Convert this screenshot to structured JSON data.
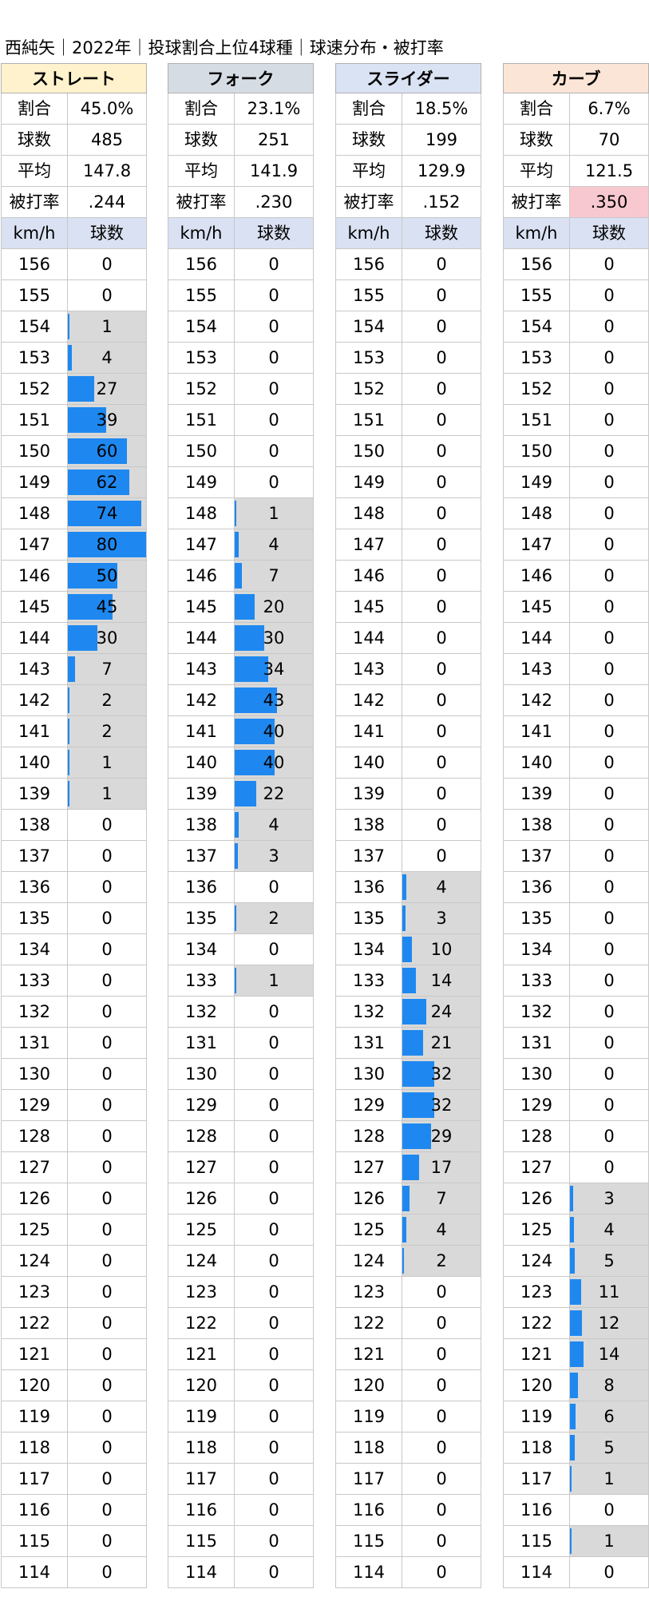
{
  "title": "西純矢｜2022年｜投球割合上位4球種｜球速分布・被打率",
  "colors": {
    "bar": "#1e88f0",
    "bar_bg": "#d9d9d9",
    "col_header_bg": "#d9e1f2",
    "highlight": "#f8c8d0"
  },
  "stat_labels": [
    "割合",
    "球数",
    "平均",
    "被打率"
  ],
  "col_headers": {
    "speed": "km/h",
    "count": "球数"
  },
  "speeds": [
    "156",
    "155",
    "154",
    "153",
    "152",
    "151",
    "150",
    "149",
    "148",
    "147",
    "146",
    "145",
    "144",
    "143",
    "142",
    "141",
    "140",
    "139",
    "138",
    "137",
    "136",
    "135",
    "134",
    "133",
    "132",
    "131",
    "130",
    "129",
    "128",
    "127",
    "126",
    "125",
    "124",
    "123",
    "122",
    "121",
    "120",
    "119",
    "118",
    "117",
    "116",
    "115",
    "114"
  ],
  "pitches": [
    {
      "name": "ストレート",
      "header_color": "#fff2cc",
      "stats": [
        "45.0%",
        "485",
        "147.8",
        ".244"
      ],
      "highlight_stat": -1,
      "counts": [
        "0",
        "0",
        "1",
        "4",
        "27",
        "39",
        "60",
        "62",
        "74",
        "80",
        "50",
        "45",
        "30",
        "7",
        "2",
        "2",
        "1",
        "1",
        "0",
        "0",
        "0",
        "0",
        "0",
        "0",
        "0",
        "0",
        "0",
        "0",
        "0",
        "0",
        "0",
        "0",
        "0",
        "0",
        "0",
        "0",
        "0",
        "0",
        "0",
        "0",
        "0",
        "0",
        "0"
      ]
    },
    {
      "name": "フォーク",
      "header_color": "#d6dce4",
      "stats": [
        "23.1%",
        "251",
        "141.9",
        ".230"
      ],
      "highlight_stat": -1,
      "counts": [
        "0",
        "0",
        "0",
        "0",
        "0",
        "0",
        "0",
        "0",
        "1",
        "4",
        "7",
        "20",
        "30",
        "34",
        "43",
        "40",
        "40",
        "22",
        "4",
        "3",
        "0",
        "2",
        "0",
        "1",
        "0",
        "0",
        "0",
        "0",
        "0",
        "0",
        "0",
        "0",
        "0",
        "0",
        "0",
        "0",
        "0",
        "0",
        "0",
        "0",
        "0",
        "0",
        "0"
      ]
    },
    {
      "name": "スライダー",
      "header_color": "#dae3f3",
      "stats": [
        "18.5%",
        "199",
        "129.9",
        ".152"
      ],
      "highlight_stat": -1,
      "counts": [
        "0",
        "0",
        "0",
        "0",
        "0",
        "0",
        "0",
        "0",
        "0",
        "0",
        "0",
        "0",
        "0",
        "0",
        "0",
        "0",
        "0",
        "0",
        "0",
        "0",
        "4",
        "3",
        "10",
        "14",
        "24",
        "21",
        "32",
        "32",
        "29",
        "17",
        "7",
        "4",
        "2",
        "0",
        "0",
        "0",
        "0",
        "0",
        "0",
        "0",
        "0",
        "0",
        "0"
      ]
    },
    {
      "name": "カーブ",
      "header_color": "#fbe5d6",
      "stats": [
        "6.7%",
        "70",
        "121.5",
        ".350"
      ],
      "highlight_stat": 3,
      "counts": [
        "0",
        "0",
        "0",
        "0",
        "0",
        "0",
        "0",
        "0",
        "0",
        "0",
        "0",
        "0",
        "0",
        "0",
        "0",
        "0",
        "0",
        "0",
        "0",
        "0",
        "0",
        "0",
        "0",
        "0",
        "0",
        "0",
        "0",
        "0",
        "0",
        "0",
        "3",
        "4",
        "5",
        "11",
        "12",
        "14",
        "8",
        "6",
        "5",
        "1",
        "0",
        "1",
        "0"
      ]
    }
  ],
  "chart_data": {
    "type": "table",
    "title": "西純矢｜2022年｜投球割合上位4球種｜球速分布・被打率",
    "xlabel": "km/h",
    "ylabel": "球数",
    "bar_max": 80,
    "categories": [
      156,
      155,
      154,
      153,
      152,
      151,
      150,
      149,
      148,
      147,
      146,
      145,
      144,
      143,
      142,
      141,
      140,
      139,
      138,
      137,
      136,
      135,
      134,
      133,
      132,
      131,
      130,
      129,
      128,
      127,
      126,
      125,
      124,
      123,
      122,
      121,
      120,
      119,
      118,
      117,
      116,
      115,
      114
    ],
    "series": [
      {
        "name": "ストレート",
        "values": [
          0,
          0,
          1,
          4,
          27,
          39,
          60,
          62,
          74,
          80,
          50,
          45,
          30,
          7,
          2,
          2,
          1,
          1,
          0,
          0,
          0,
          0,
          0,
          0,
          0,
          0,
          0,
          0,
          0,
          0,
          0,
          0,
          0,
          0,
          0,
          0,
          0,
          0,
          0,
          0,
          0,
          0,
          0
        ]
      },
      {
        "name": "フォーク",
        "values": [
          0,
          0,
          0,
          0,
          0,
          0,
          0,
          0,
          1,
          4,
          7,
          20,
          30,
          34,
          43,
          40,
          40,
          22,
          4,
          3,
          0,
          2,
          0,
          1,
          0,
          0,
          0,
          0,
          0,
          0,
          0,
          0,
          0,
          0,
          0,
          0,
          0,
          0,
          0,
          0,
          0,
          0,
          0
        ]
      },
      {
        "name": "スライダー",
        "values": [
          0,
          0,
          0,
          0,
          0,
          0,
          0,
          0,
          0,
          0,
          0,
          0,
          0,
          0,
          0,
          0,
          0,
          0,
          0,
          0,
          4,
          3,
          10,
          14,
          24,
          21,
          32,
          32,
          29,
          17,
          7,
          4,
          2,
          0,
          0,
          0,
          0,
          0,
          0,
          0,
          0,
          0,
          0
        ]
      },
      {
        "name": "カーブ",
        "values": [
          0,
          0,
          0,
          0,
          0,
          0,
          0,
          0,
          0,
          0,
          0,
          0,
          0,
          0,
          0,
          0,
          0,
          0,
          0,
          0,
          0,
          0,
          0,
          0,
          0,
          0,
          0,
          0,
          0,
          0,
          3,
          4,
          5,
          11,
          12,
          14,
          8,
          6,
          5,
          1,
          0,
          1,
          0
        ]
      }
    ]
  }
}
